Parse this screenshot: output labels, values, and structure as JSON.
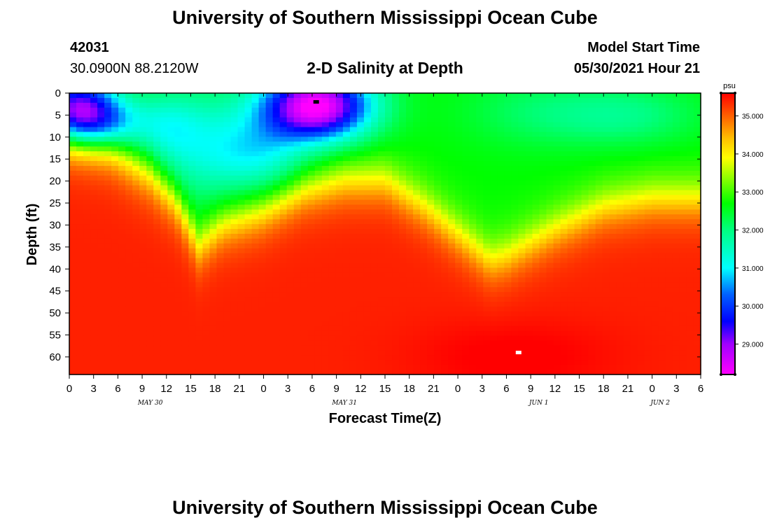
{
  "header": {
    "title": "University of Southern Mississippi Ocean Cube",
    "station_id": "42031",
    "station_coords": "30.0900N  88.2120W",
    "subtitle": "2-D Salinity at Depth",
    "model_label": "Model Start Time",
    "model_time": "05/30/2021 Hour 21"
  },
  "footer": {
    "title": "University of Southern Mississippi Ocean Cube"
  },
  "chart_data": {
    "type": "heatmap",
    "title": "2-D Salinity at Depth",
    "xlabel": "Forecast Time(Z)",
    "ylabel": "Depth (ft)",
    "x_tick_labels": [
      "0",
      "3",
      "6",
      "9",
      "12",
      "15",
      "18",
      "21",
      "0",
      "3",
      "6",
      "9",
      "12",
      "15",
      "18",
      "21",
      "0",
      "3",
      "6",
      "9",
      "12",
      "15",
      "18",
      "21",
      "0",
      "3",
      "6"
    ],
    "x_date_labels": [
      {
        "label": "MAY 30",
        "hour_index": 10
      },
      {
        "label": "MAY 31",
        "hour_index": 34
      },
      {
        "label": "JUN 1",
        "hour_index": 58
      },
      {
        "label": "JUN 2",
        "hour_index": 73
      }
    ],
    "xlim_hours": [
      0,
      78
    ],
    "y_ticks": [
      0,
      5,
      10,
      15,
      20,
      25,
      30,
      35,
      40,
      45,
      50,
      55,
      60
    ],
    "ylim": [
      0,
      64
    ],
    "y_inverted": true,
    "colorbar": {
      "unit": "psu",
      "range": [
        28.2,
        35.6
      ],
      "ticks": [
        "29.000",
        "30.000",
        "31.000",
        "32.000",
        "33.000",
        "34.000",
        "35.000"
      ],
      "tick_values": [
        29,
        30,
        31,
        32,
        33,
        34,
        35
      ],
      "colors": [
        [
          28.2,
          "#ff00ff"
        ],
        [
          29.0,
          "#a000ff"
        ],
        [
          29.6,
          "#0000ff"
        ],
        [
          30.3,
          "#0060ff"
        ],
        [
          31.0,
          "#00ffff"
        ],
        [
          32.0,
          "#00ff80"
        ],
        [
          32.7,
          "#00ff00"
        ],
        [
          33.3,
          "#80ff00"
        ],
        [
          33.9,
          "#ffff00"
        ],
        [
          34.4,
          "#ffc000"
        ],
        [
          34.8,
          "#ff8000"
        ],
        [
          35.2,
          "#ff4000"
        ],
        [
          35.6,
          "#ff0000"
        ]
      ]
    },
    "min_marker": {
      "hour": 30.5,
      "depth": 2
    },
    "max_marker": {
      "hour": 55.5,
      "depth": 59
    },
    "halocline_points": [
      {
        "hour": 0,
        "depth": 11
      },
      {
        "hour": 5,
        "depth": 13
      },
      {
        "hour": 10,
        "depth": 18
      },
      {
        "hour": 13,
        "depth": 24
      },
      {
        "hour": 16,
        "depth": 35
      },
      {
        "hour": 19,
        "depth": 30
      },
      {
        "hour": 24,
        "depth": 27
      },
      {
        "hour": 29,
        "depth": 22
      },
      {
        "hour": 34,
        "depth": 20
      },
      {
        "hour": 39,
        "depth": 20
      },
      {
        "hour": 44,
        "depth": 26
      },
      {
        "hour": 48,
        "depth": 32
      },
      {
        "hour": 52,
        "depth": 38
      },
      {
        "hour": 54,
        "depth": 37
      },
      {
        "hour": 60,
        "depth": 31
      },
      {
        "hour": 66,
        "depth": 26
      },
      {
        "hour": 72,
        "depth": 24
      },
      {
        "hour": 78,
        "depth": 24
      }
    ]
  }
}
